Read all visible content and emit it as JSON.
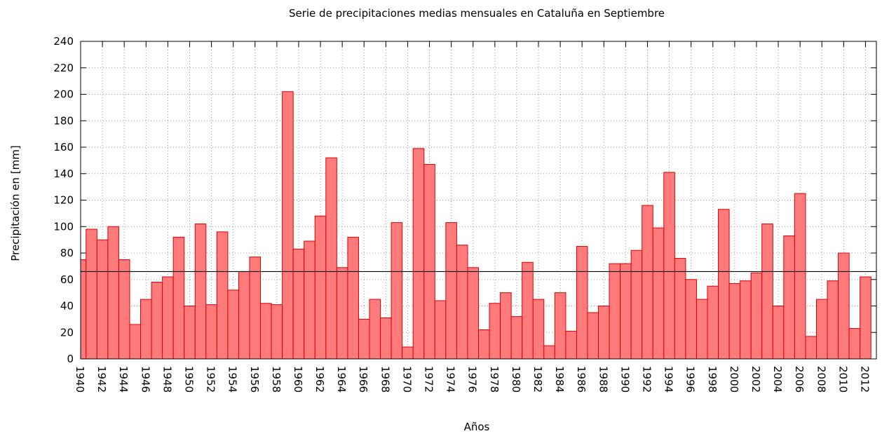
{
  "chart_data": {
    "type": "bar",
    "title": "Serie de precipitaciones medias mensuales en Cataluña en Septiembre",
    "xlabel": "Años",
    "ylabel": "Precipitación en [mm]",
    "x": [
      1940,
      1941,
      1942,
      1943,
      1944,
      1945,
      1946,
      1947,
      1948,
      1949,
      1950,
      1951,
      1952,
      1953,
      1954,
      1955,
      1956,
      1957,
      1958,
      1959,
      1960,
      1961,
      1962,
      1963,
      1964,
      1965,
      1966,
      1967,
      1968,
      1969,
      1970,
      1971,
      1972,
      1973,
      1974,
      1975,
      1976,
      1977,
      1978,
      1979,
      1980,
      1981,
      1982,
      1983,
      1984,
      1985,
      1986,
      1987,
      1988,
      1989,
      1990,
      1991,
      1992,
      1993,
      1994,
      1995,
      1996,
      1997,
      1998,
      1999,
      2000,
      2001,
      2002,
      2003,
      2004,
      2005,
      2006,
      2007,
      2008,
      2009,
      2010,
      2011,
      2012
    ],
    "values": [
      75,
      98,
      90,
      100,
      75,
      26,
      45,
      58,
      62,
      92,
      40,
      102,
      41,
      96,
      52,
      66,
      77,
      42,
      41,
      202,
      83,
      89,
      108,
      152,
      69,
      92,
      30,
      45,
      31,
      103,
      9,
      159,
      147,
      44,
      103,
      86,
      69,
      22,
      42,
      50,
      32,
      73,
      45,
      10,
      50,
      21,
      85,
      35,
      40,
      72,
      72,
      82,
      116,
      99,
      141,
      76,
      60,
      45,
      55,
      113,
      57,
      59,
      65,
      102,
      40,
      93,
      125,
      17,
      45,
      59,
      80,
      23,
      62
    ],
    "color": "#ff7b7b",
    "edge_color": "#dd0000",
    "reference_line": 66,
    "xlim": [
      1940,
      2013
    ],
    "xticks": [
      1940,
      1942,
      1944,
      1946,
      1948,
      1950,
      1952,
      1954,
      1956,
      1958,
      1960,
      1962,
      1964,
      1966,
      1968,
      1970,
      1972,
      1974,
      1976,
      1978,
      1980,
      1982,
      1984,
      1986,
      1988,
      1990,
      1992,
      1994,
      1996,
      1998,
      2000,
      2002,
      2004,
      2006,
      2008,
      2010,
      2012
    ],
    "ylim": [
      0,
      240
    ],
    "yticks": [
      0,
      20,
      40,
      60,
      80,
      100,
      120,
      140,
      160,
      180,
      200,
      220,
      240
    ],
    "grid": true
  }
}
